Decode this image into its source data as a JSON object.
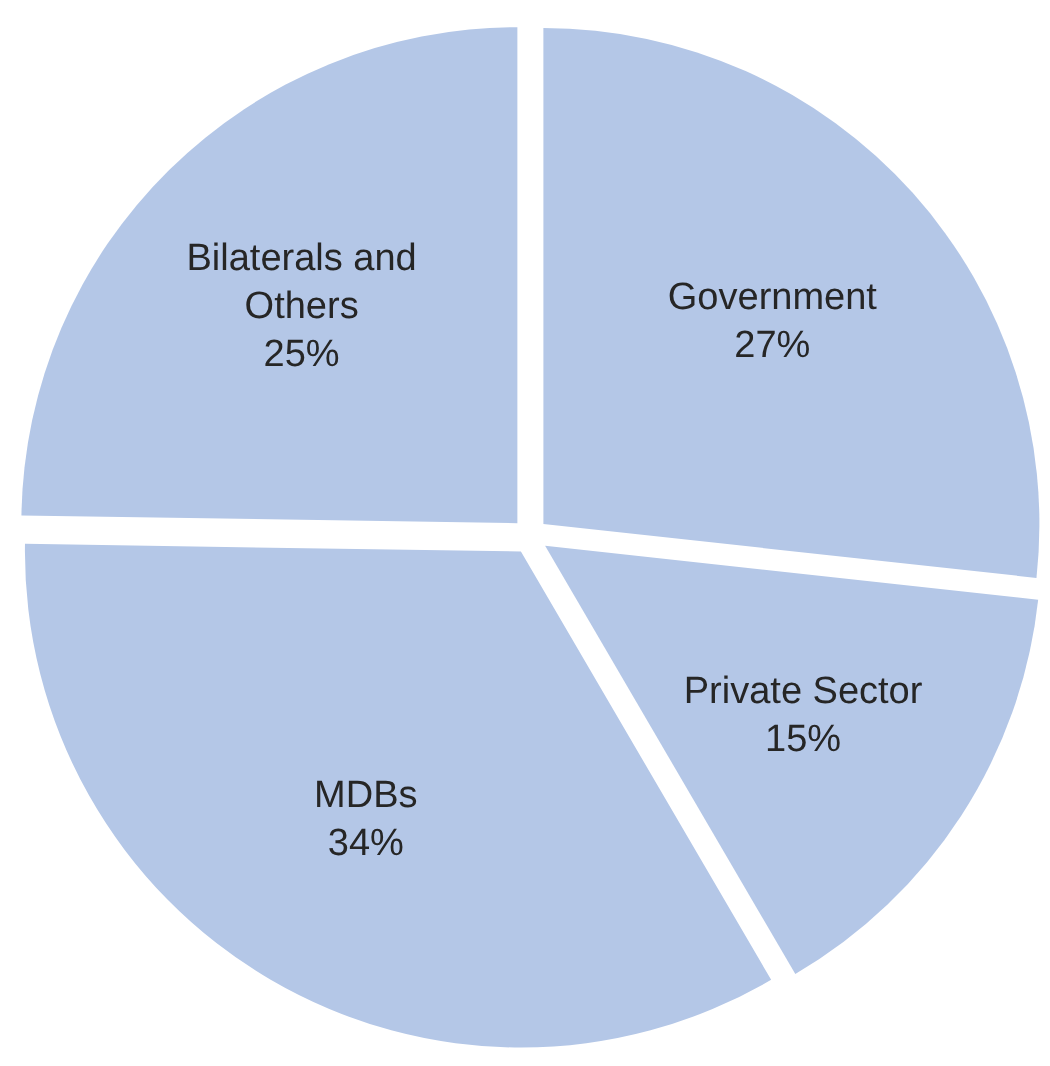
{
  "chart_data": {
    "type": "pie",
    "categories": [
      "Government",
      "Private Sector",
      "MDBs",
      "Bilaterals and Others"
    ],
    "values": [
      27,
      15,
      34,
      25
    ],
    "colors": [
      "#b4c7e7",
      "#b4c7e7",
      "#b4c7e7",
      "#b4c7e7"
    ],
    "value_labels": [
      "27%",
      "15%",
      "34%",
      "25%"
    ]
  }
}
